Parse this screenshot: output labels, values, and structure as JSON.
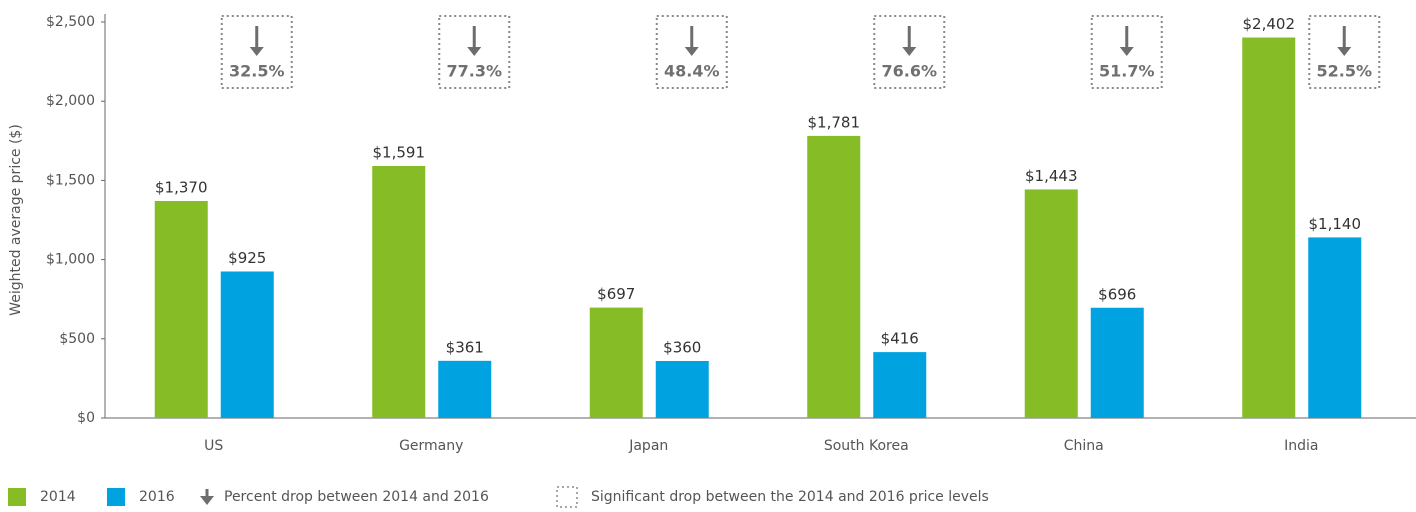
{
  "chart_data": {
    "type": "bar",
    "y_axis_label": "Weighted average price ($)",
    "categories": [
      "US",
      "Germany",
      "Japan",
      "South Korea",
      "China",
      "India"
    ],
    "series": [
      {
        "name": "2014",
        "color": "#86bc25",
        "values": [
          1370,
          1591,
          697,
          1781,
          1443,
          2402
        ],
        "value_labels": [
          "$1,370",
          "$1,591",
          "$697",
          "$1,781",
          "$1,443",
          "$2,402"
        ]
      },
      {
        "name": "2016",
        "color": "#00a3e0",
        "values": [
          925,
          361,
          360,
          416,
          696,
          1140
        ],
        "value_labels": [
          "$925",
          "$361",
          "$360",
          "$416",
          "$696",
          "$1,140"
        ]
      }
    ],
    "annotations": [
      "32.5%",
      "77.3%",
      "48.4%",
      "76.6%",
      "51.7%",
      "52.5%"
    ],
    "legend_notes": [
      "Percent drop between 2014 and 2016",
      "Significant drop between the 2014 and 2016 price levels"
    ],
    "ylim": [
      0,
      2500
    ],
    "yticks": [
      {
        "value": 0,
        "label": "$0"
      },
      {
        "value": 500,
        "label": "$500"
      },
      {
        "value": 1000,
        "label": "$1,000"
      },
      {
        "value": 1500,
        "label": "$1,500"
      },
      {
        "value": 2000,
        "label": "$2,000"
      },
      {
        "value": 2500,
        "label": "$2,500"
      }
    ],
    "grid": false,
    "legend": "bottom-left"
  }
}
